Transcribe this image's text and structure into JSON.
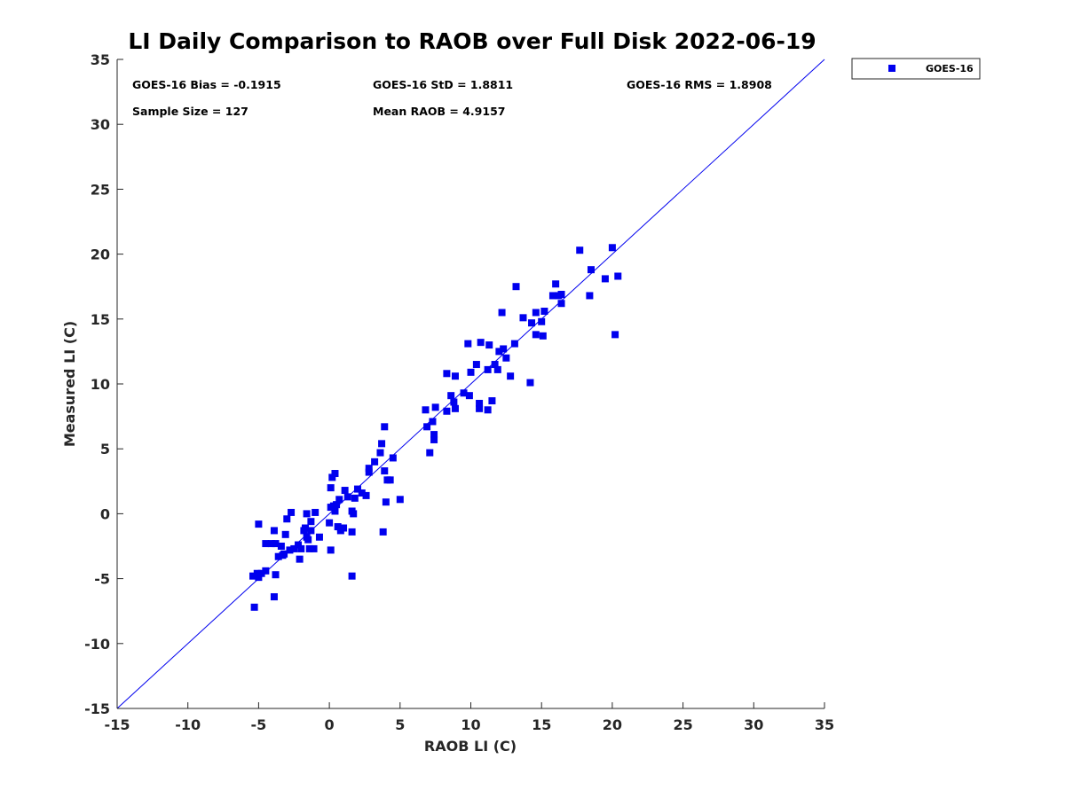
{
  "chart_data": {
    "type": "scatter",
    "title": "LI Daily Comparison to RAOB over Full Disk 2022-06-19",
    "xlabel": "RAOB LI (C)",
    "ylabel": "Measured LI (C)",
    "xlim": [
      -15,
      35
    ],
    "ylim": [
      -15,
      35
    ],
    "xticks": [
      -15,
      -10,
      -5,
      0,
      5,
      10,
      15,
      20,
      25,
      30,
      35
    ],
    "yticks": [
      -15,
      -10,
      -5,
      0,
      5,
      10,
      15,
      20,
      25,
      30,
      35
    ],
    "marker_color": "#0000ee",
    "line_color": "#0000ee",
    "reference_line": "y = x",
    "legend": {
      "label": "GOES-16",
      "position": "outside-top-right"
    },
    "stats": {
      "bias": "GOES-16 Bias = -0.1915",
      "std": "GOES-16 StD = 1.8811",
      "rms": "GOES-16 RMS = 1.8908",
      "sample_size": "Sample Size = 127",
      "mean_raob": "Mean RAOB = 4.9157"
    },
    "series": [
      {
        "name": "GOES-16",
        "points": [
          [
            -5.3,
            -7.2
          ],
          [
            -5.4,
            -4.8
          ],
          [
            -5.1,
            -4.6
          ],
          [
            -5.0,
            -4.9
          ],
          [
            -4.8,
            -4.6
          ],
          [
            -4.5,
            -4.4
          ],
          [
            -3.9,
            -6.4
          ],
          [
            -3.8,
            -4.7
          ],
          [
            -5.0,
            -0.8
          ],
          [
            -4.5,
            -2.3
          ],
          [
            -4.1,
            -2.3
          ],
          [
            -3.9,
            -1.3
          ],
          [
            -3.8,
            -2.3
          ],
          [
            -3.6,
            -3.3
          ],
          [
            -3.4,
            -2.5
          ],
          [
            -3.2,
            -3.1
          ],
          [
            -3.1,
            -1.6
          ],
          [
            -3.0,
            -0.4
          ],
          [
            -2.8,
            -2.8
          ],
          [
            -2.7,
            0.1
          ],
          [
            -2.5,
            -2.7
          ],
          [
            -2.2,
            -2.4
          ],
          [
            -2.1,
            -3.5
          ],
          [
            -2.0,
            -2.7
          ],
          [
            -1.8,
            -1.3
          ],
          [
            -1.7,
            -1.1
          ],
          [
            -1.6,
            -1.8
          ],
          [
            -1.6,
            0.0
          ],
          [
            -1.5,
            -2.0
          ],
          [
            -1.4,
            -2.7
          ],
          [
            -1.3,
            -1.3
          ],
          [
            -1.3,
            -0.6
          ],
          [
            -1.1,
            -2.7
          ],
          [
            -1.0,
            0.1
          ],
          [
            -0.7,
            -1.8
          ],
          [
            -3.3,
            -3.2
          ],
          [
            0.0,
            -0.7
          ],
          [
            0.1,
            -2.8
          ],
          [
            0.1,
            0.5
          ],
          [
            0.1,
            2.0
          ],
          [
            0.2,
            2.8
          ],
          [
            0.3,
            0.6
          ],
          [
            0.4,
            0.2
          ],
          [
            0.4,
            3.1
          ],
          [
            0.5,
            0.7
          ],
          [
            0.6,
            -1.0
          ],
          [
            0.7,
            1.1
          ],
          [
            0.8,
            -1.3
          ],
          [
            0.8,
            -1.1
          ],
          [
            1.0,
            -1.1
          ],
          [
            1.1,
            1.8
          ],
          [
            1.3,
            1.3
          ],
          [
            1.6,
            -4.8
          ],
          [
            1.6,
            0.2
          ],
          [
            1.6,
            -1.4
          ],
          [
            1.7,
            0.0
          ],
          [
            1.8,
            1.2
          ],
          [
            2.0,
            1.9
          ],
          [
            2.3,
            1.6
          ],
          [
            2.6,
            1.4
          ],
          [
            2.8,
            3.2
          ],
          [
            2.8,
            3.5
          ],
          [
            3.2,
            4.0
          ],
          [
            3.6,
            4.7
          ],
          [
            3.7,
            5.4
          ],
          [
            3.8,
            -1.4
          ],
          [
            3.9,
            3.3
          ],
          [
            3.9,
            6.7
          ],
          [
            4.0,
            0.9
          ],
          [
            4.1,
            2.6
          ],
          [
            4.3,
            2.6
          ],
          [
            4.5,
            4.3
          ],
          [
            5.0,
            1.1
          ],
          [
            6.8,
            8.0
          ],
          [
            6.9,
            6.7
          ],
          [
            7.1,
            4.7
          ],
          [
            7.3,
            7.1
          ],
          [
            7.4,
            5.7
          ],
          [
            7.4,
            6.1
          ],
          [
            7.5,
            8.2
          ],
          [
            8.3,
            7.9
          ],
          [
            8.3,
            10.8
          ],
          [
            8.6,
            9.1
          ],
          [
            8.8,
            8.6
          ],
          [
            8.9,
            8.1
          ],
          [
            8.9,
            10.6
          ],
          [
            9.8,
            13.1
          ],
          [
            9.9,
            9.1
          ],
          [
            10.0,
            10.9
          ],
          [
            10.4,
            11.5
          ],
          [
            10.6,
            8.1
          ],
          [
            10.6,
            8.5
          ],
          [
            10.7,
            13.2
          ],
          [
            11.2,
            8.0
          ],
          [
            11.2,
            11.1
          ],
          [
            11.3,
            13.0
          ],
          [
            11.5,
            8.7
          ],
          [
            11.9,
            11.1
          ],
          [
            12.0,
            12.5
          ],
          [
            12.2,
            15.5
          ],
          [
            12.5,
            12.0
          ],
          [
            12.8,
            10.6
          ],
          [
            13.1,
            13.1
          ],
          [
            13.2,
            17.5
          ],
          [
            13.7,
            15.1
          ],
          [
            14.2,
            10.1
          ],
          [
            14.3,
            14.7
          ],
          [
            14.6,
            15.5
          ],
          [
            14.6,
            13.8
          ],
          [
            15.0,
            14.8
          ],
          [
            15.1,
            13.7
          ],
          [
            15.2,
            15.6
          ],
          [
            15.8,
            16.8
          ],
          [
            16.0,
            17.7
          ],
          [
            16.2,
            16.8
          ],
          [
            16.4,
            16.9
          ],
          [
            16.4,
            16.2
          ],
          [
            17.7,
            20.3
          ],
          [
            18.4,
            16.8
          ],
          [
            18.5,
            18.8
          ],
          [
            19.5,
            18.1
          ],
          [
            20.0,
            20.5
          ],
          [
            20.2,
            13.8
          ],
          [
            20.4,
            18.3
          ],
          [
            9.5,
            9.3
          ],
          [
            12.3,
            12.7
          ],
          [
            11.7,
            11.5
          ]
        ]
      }
    ]
  }
}
